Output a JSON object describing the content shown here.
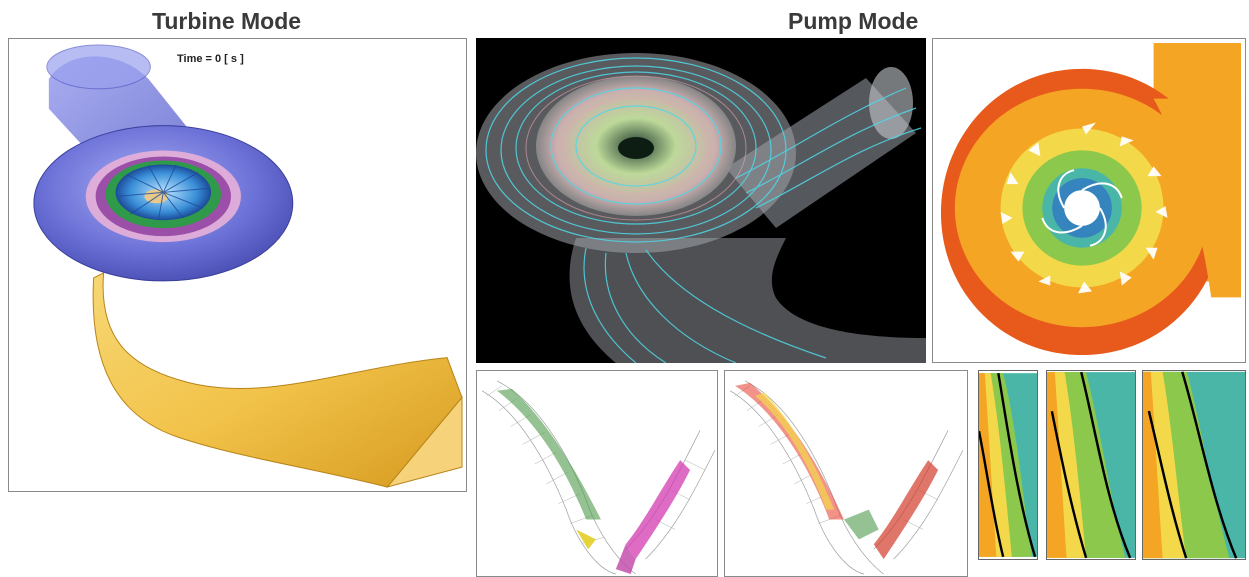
{
  "headings": {
    "turbine": "Turbine Mode",
    "pump": "Pump Mode"
  },
  "turbine_panel": {
    "time_label": "Time = 0 [ s ]"
  },
  "colors": {
    "spiral_casing": "#6a6fd6",
    "draft_tube": "#f2c34a",
    "streamline_cyan": "#4fd8e8",
    "contour_red": "#e85a1c",
    "contour_orange": "#f5a524",
    "contour_green": "#8cc84b",
    "contour_teal": "#49b6a8",
    "background_dark": "#000000"
  }
}
